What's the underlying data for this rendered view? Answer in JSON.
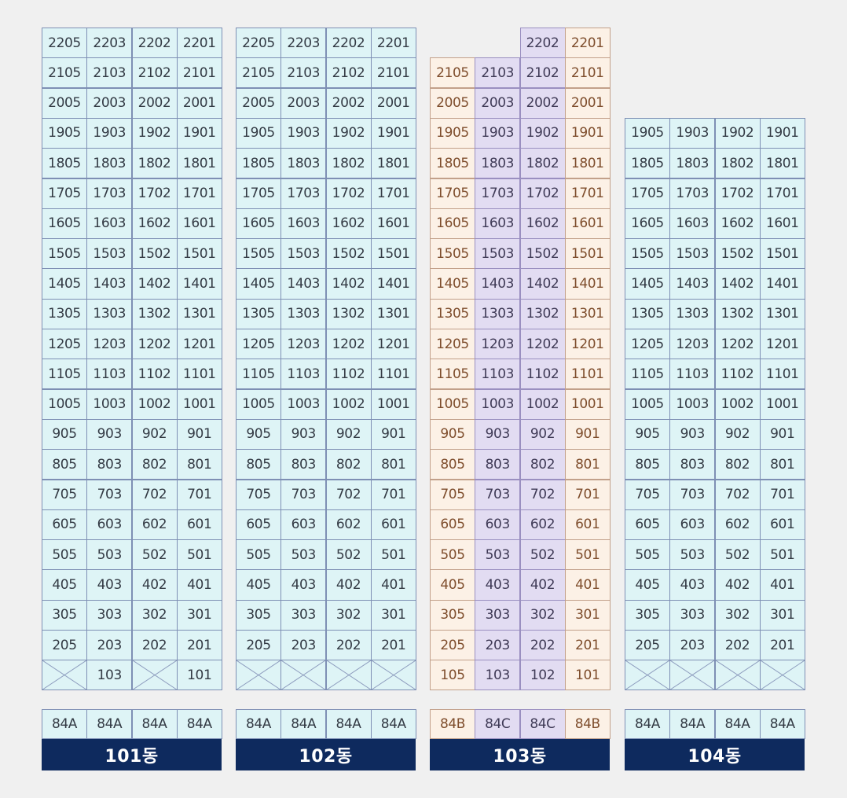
{
  "buildings": [
    {
      "name": "101동",
      "top_floor": 22,
      "column_types": [
        "A",
        "A",
        "A",
        "A"
      ],
      "unit_types": [
        "84A",
        "84A",
        "84A",
        "84A"
      ],
      "ground_floor": [
        "x",
        "103",
        "x",
        "101"
      ]
    },
    {
      "name": "102동",
      "top_floor": 22,
      "column_types": [
        "A",
        "A",
        "A",
        "A"
      ],
      "unit_types": [
        "84A",
        "84A",
        "84A",
        "84A"
      ],
      "ground_floor": [
        "x",
        "x",
        "x",
        "x"
      ]
    },
    {
      "name": "103동",
      "top_floor": 21,
      "partial_top": {
        "floor": 22,
        "units": [
          "2202",
          "2201"
        ]
      },
      "column_types": [
        "B",
        "C",
        "C",
        "B"
      ],
      "unit_types": [
        "84B",
        "84C",
        "84C",
        "84B"
      ],
      "ground_floor": [
        "105",
        "103",
        "102",
        "101"
      ]
    },
    {
      "name": "104동",
      "top_floor": 19,
      "column_types": [
        "A",
        "A",
        "A",
        "A"
      ],
      "unit_types": [
        "84A",
        "84A",
        "84A",
        "84A"
      ],
      "ground_floor": [
        "x",
        "x",
        "x",
        "x"
      ]
    }
  ],
  "unit_suffixes": [
    "05",
    "03",
    "02",
    "01"
  ],
  "colors": {
    "type_A": "#def4f6",
    "type_B": "#fcf1e6",
    "type_C": "#e2dcf2",
    "name_bar": "#0e2a5e"
  }
}
